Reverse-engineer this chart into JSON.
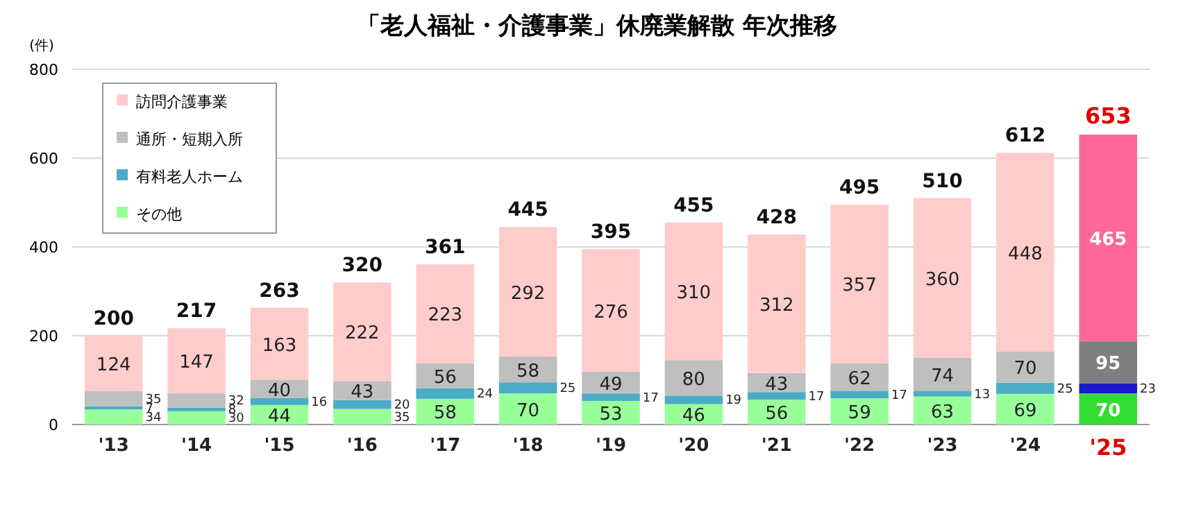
{
  "chart_data": {
    "type": "bar",
    "stacked": true,
    "title": "「老人福祉・介護事業」休廃業解散  年次推移",
    "ylabel": "(件)",
    "categories": [
      "'13",
      "'14",
      "'15",
      "'16",
      "'17",
      "'18",
      "'19",
      "'20",
      "'21",
      "'22",
      "'23",
      "'24",
      "'25"
    ],
    "series": [
      {
        "name": "その他",
        "color": "#99ff99",
        "colors": [
          "#99ff99",
          "#99ff99",
          "#99ff99",
          "#99ff99",
          "#99ff99",
          "#99ff99",
          "#99ff99",
          "#99ff99",
          "#99ff99",
          "#99ff99",
          "#99ff99",
          "#99ff99",
          "#33dd33"
        ],
        "values": [
          34,
          30,
          44,
          35,
          58,
          70,
          53,
          46,
          56,
          59,
          63,
          69,
          70
        ]
      },
      {
        "name": "有料老人ホーム",
        "color": "#4bacc6",
        "colors": [
          "#4bacc6",
          "#4bacc6",
          "#4bacc6",
          "#4bacc6",
          "#4bacc6",
          "#4bacc6",
          "#4bacc6",
          "#4bacc6",
          "#4bacc6",
          "#4bacc6",
          "#4bacc6",
          "#4bacc6",
          "#1a1acc"
        ],
        "values": [
          7,
          8,
          16,
          20,
          24,
          25,
          17,
          19,
          17,
          17,
          13,
          25,
          23
        ]
      },
      {
        "name": "通所・短期入所",
        "color": "#bfbfbf",
        "colors": [
          "#bfbfbf",
          "#bfbfbf",
          "#bfbfbf",
          "#bfbfbf",
          "#bfbfbf",
          "#bfbfbf",
          "#bfbfbf",
          "#bfbfbf",
          "#bfbfbf",
          "#bfbfbf",
          "#bfbfbf",
          "#bfbfbf",
          "#7f7f7f"
        ],
        "values": [
          35,
          32,
          40,
          43,
          56,
          58,
          49,
          80,
          43,
          62,
          74,
          70,
          95
        ]
      },
      {
        "name": "訪問介護事業",
        "color": "#ffcccc",
        "colors": [
          "#ffcccc",
          "#ffcccc",
          "#ffcccc",
          "#ffcccc",
          "#ffcccc",
          "#ffcccc",
          "#ffcccc",
          "#ffcccc",
          "#ffcccc",
          "#ffcccc",
          "#ffcccc",
          "#ffcccc",
          "#ff6699"
        ],
        "values": [
          124,
          147,
          163,
          222,
          223,
          292,
          276,
          310,
          312,
          357,
          360,
          448,
          465
        ]
      }
    ],
    "totals": [
      "200",
      "217",
      "263",
      "320",
      "361",
      "445",
      "395",
      "455",
      "428",
      "495",
      "510",
      "612",
      "653"
    ],
    "data_labels": true,
    "ylim": [
      0,
      800
    ],
    "yticks": [
      0,
      200,
      400,
      600,
      800
    ],
    "grid": "y",
    "legend": "top left"
  }
}
